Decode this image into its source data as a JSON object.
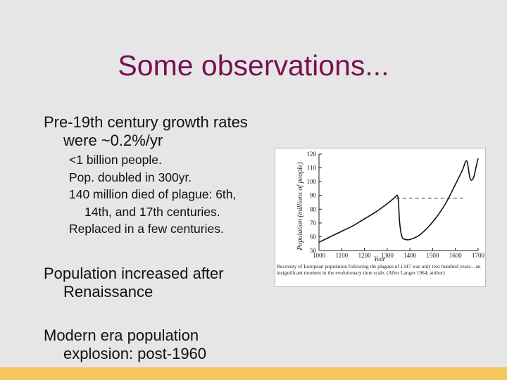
{
  "slide": {
    "title": "Some observations...",
    "bullets": [
      {
        "text_line1": "Pre-19th century growth rates",
        "text_line2": "were ~0.2%/yr",
        "sub": [
          {
            "line1": "<1 billion people.",
            "line2": ""
          },
          {
            "line1": "Pop. doubled in 300yr.",
            "line2": ""
          },
          {
            "line1": "140 million died of plague: 6th,",
            "line2": "14th, and 17th centuries."
          },
          {
            "line1": "Replaced in a few centuries.",
            "line2": ""
          }
        ]
      },
      {
        "text_line1": "Population increased after",
        "text_line2": "Renaissance"
      },
      {
        "text_line1": "Modern era population",
        "text_line2": "explosion: post-1960"
      }
    ],
    "accent_color": "#7a1050",
    "bar_color": "#f6c65e"
  },
  "chart_data": {
    "type": "line",
    "title": "",
    "xlabel": "Year",
    "ylabel": "Population (millions of people)",
    "xlim": [
      1000,
      1700
    ],
    "ylim": [
      50,
      120
    ],
    "x_ticks": [
      "1000",
      "1100",
      "1200",
      "1300",
      "1400",
      "1500",
      "1600",
      "1700"
    ],
    "y_ticks": [
      "50",
      "60",
      "70",
      "80",
      "90",
      "100",
      "110",
      "120"
    ],
    "series": [
      {
        "x": [
          1000,
          1050,
          1100,
          1150,
          1200,
          1250,
          1300,
          1330,
          1345,
          1350,
          1355,
          1365,
          1380,
          1400,
          1440,
          1480,
          1520,
          1560,
          1600,
          1630,
          1650,
          1665,
          1680,
          1690,
          1700
        ],
        "y": [
          56,
          60,
          64,
          68,
          73,
          78,
          84,
          88,
          90,
          84,
          70,
          60,
          58,
          58,
          61,
          67,
          75,
          85,
          98,
          108,
          115,
          102,
          103,
          110,
          117
        ]
      }
    ],
    "dashed_reference": {
      "x": [
        1340,
        1640
      ],
      "y": [
        88,
        88
      ]
    },
    "caption": "Recovery of European population following the plagues of 1347 was only two hundred years—an insignificant moment in the evolutionary time scale. (After Langer 1964; author)"
  }
}
